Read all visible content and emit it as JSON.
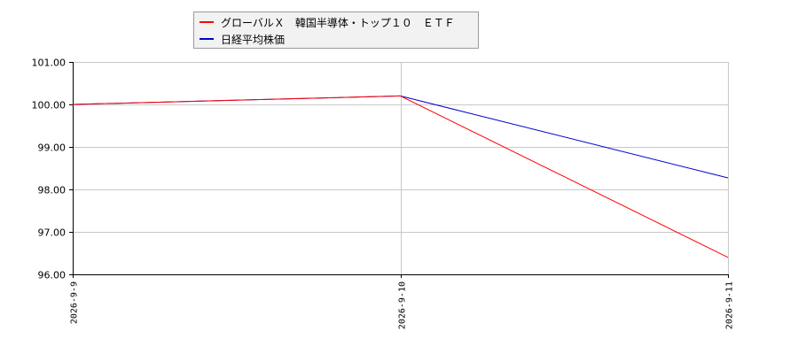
{
  "chart_data": {
    "type": "line",
    "x": [
      "2026-9-9",
      "2026-9-10",
      "2026-9-11"
    ],
    "series": [
      {
        "name": "グローバルＸ　韓国半導体・トップ１０　ＥＴＦ",
        "color": "#ff0000",
        "values": [
          100.0,
          100.2,
          96.4
        ]
      },
      {
        "name": "日経平均株価",
        "color": "#0000cc",
        "values": [
          100.0,
          100.2,
          98.27
        ]
      }
    ],
    "ylim": [
      96.0,
      101.0
    ],
    "yticks": [
      "96.00",
      "97.00",
      "98.00",
      "99.00",
      "100.00",
      "101.00"
    ],
    "grid": true,
    "legend_position": "top"
  }
}
